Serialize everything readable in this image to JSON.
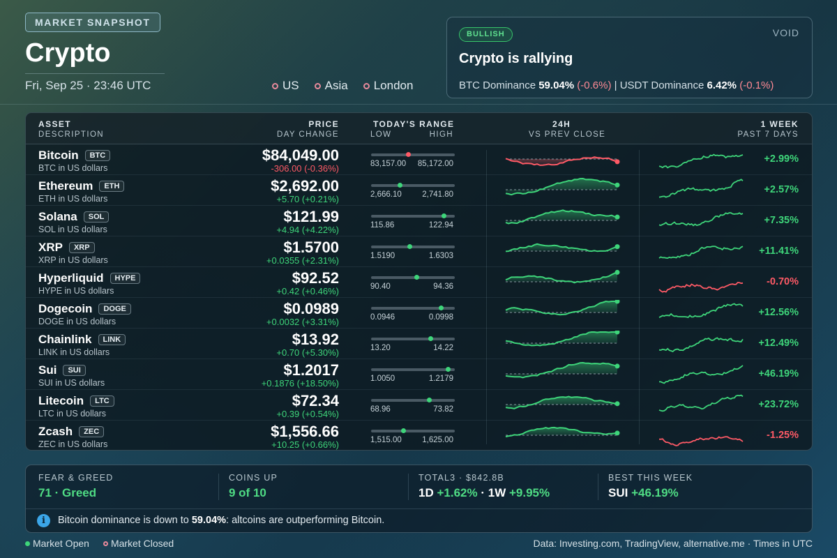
{
  "header": {
    "badge": "MARKET SNAPSHOT",
    "title": "Crypto",
    "datetime": "Fri, Sep 25 · 23:46 UTC",
    "sessions": [
      "US",
      "Asia",
      "London"
    ]
  },
  "sentiment": {
    "badge": "BULLISH",
    "brand": "VOID",
    "headline": "Crypto is rallying",
    "btc_label": "BTC Dominance",
    "btc_value": "59.04%",
    "btc_change": "(-0.6%)",
    "separator": "|",
    "usdt_label": "USDT Dominance",
    "usdt_value": "6.42%",
    "usdt_change": "(-0.1%)"
  },
  "table": {
    "headers": {
      "asset": "ASSET",
      "description": "DESCRIPTION",
      "price": "PRICE",
      "day_change": "DAY CHANGE",
      "range": "TODAY'S RANGE",
      "low": "LOW",
      "high": "HIGH",
      "h24": "24H",
      "vs_prev": "VS PREV CLOSE",
      "week": "1 WEEK",
      "past7": "PAST 7 DAYS"
    },
    "colors": {
      "up": "#3ed57a",
      "down": "#ff5a66"
    },
    "rows": [
      {
        "name": "Bitcoin",
        "ticker": "BTC",
        "desc": "BTC in US dollars",
        "price": "$84,049.00",
        "change": "-306.00 (-0.36%)",
        "dir": "down",
        "low": "83,157.00",
        "high": "85,172.00",
        "range_pos": 0.44,
        "week": "+2.99%",
        "week_dir": "up"
      },
      {
        "name": "Ethereum",
        "ticker": "ETH",
        "desc": "ETH in US dollars",
        "price": "$2,692.00",
        "change": "+5.70 (+0.21%)",
        "dir": "up",
        "low": "2,666.10",
        "high": "2,741.80",
        "range_pos": 0.34,
        "week": "+2.57%",
        "week_dir": "up"
      },
      {
        "name": "Solana",
        "ticker": "SOL",
        "desc": "SOL in US dollars",
        "price": "$121.99",
        "change": "+4.94 (+4.22%)",
        "dir": "up",
        "low": "115.86",
        "high": "122.94",
        "range_pos": 0.87,
        "week": "+7.35%",
        "week_dir": "up"
      },
      {
        "name": "XRP",
        "ticker": "XRP",
        "desc": "XRP in US dollars",
        "price": "$1.5700",
        "change": "+0.0355 (+2.31%)",
        "dir": "up",
        "low": "1.5190",
        "high": "1.6303",
        "range_pos": 0.46,
        "week": "+11.41%",
        "week_dir": "up"
      },
      {
        "name": "Hyperliquid",
        "ticker": "HYPE",
        "desc": "HYPE in US dollars",
        "price": "$92.52",
        "change": "+0.42 (+0.46%)",
        "dir": "up",
        "low": "90.40",
        "high": "94.36",
        "range_pos": 0.54,
        "week": "-0.70%",
        "week_dir": "down"
      },
      {
        "name": "Dogecoin",
        "ticker": "DOGE",
        "desc": "DOGE in US dollars",
        "price": "$0.0989",
        "change": "+0.0032 (+3.31%)",
        "dir": "up",
        "low": "0.0946",
        "high": "0.0998",
        "range_pos": 0.83,
        "week": "+12.56%",
        "week_dir": "up"
      },
      {
        "name": "Chainlink",
        "ticker": "LINK",
        "desc": "LINK in US dollars",
        "price": "$13.92",
        "change": "+0.70 (+5.30%)",
        "dir": "up",
        "low": "13.20",
        "high": "14.22",
        "range_pos": 0.71,
        "week": "+12.49%",
        "week_dir": "up"
      },
      {
        "name": "Sui",
        "ticker": "SUI",
        "desc": "SUI in US dollars",
        "price": "$1.2017",
        "change": "+0.1876 (+18.50%)",
        "dir": "up",
        "low": "1.0050",
        "high": "1.2179",
        "range_pos": 0.92,
        "week": "+46.19%",
        "week_dir": "up"
      },
      {
        "name": "Litecoin",
        "ticker": "LTC",
        "desc": "LTC in US dollars",
        "price": "$72.34",
        "change": "+0.39 (+0.54%)",
        "dir": "up",
        "low": "68.96",
        "high": "73.82",
        "range_pos": 0.69,
        "week": "+23.72%",
        "week_dir": "up"
      },
      {
        "name": "Zcash",
        "ticker": "ZEC",
        "desc": "ZEC in US dollars",
        "price": "$1,556.66",
        "change": "+10.25 (+0.66%)",
        "dir": "up",
        "low": "1,515.00",
        "high": "1,625.00",
        "range_pos": 0.38,
        "week": "-1.25%",
        "week_dir": "down"
      }
    ]
  },
  "stats": {
    "fear_greed_label": "FEAR & GREED",
    "fear_greed_value": "71 · Greed",
    "coins_up_label": "COINS UP",
    "coins_up_value": "9 of 10",
    "total3_label": "TOTAL3 · $842.8B",
    "total3_1d_label": "1D",
    "total3_1d": "+1.62%",
    "total3_sep": "·",
    "total3_1w_label": "1W",
    "total3_1w": "+9.95%",
    "best_label": "BEST THIS WEEK",
    "best_coin": "SUI",
    "best_value": "+46.19%",
    "info_icon": "i",
    "info_prefix": "Bitcoin dominance is down to",
    "info_value": "59.04%",
    "info_suffix": ": altcoins are outperforming Bitcoin."
  },
  "footer": {
    "open": "Market Open",
    "closed": "Market Closed",
    "source": "Data: Investing.com, TradingView, alternative.me  ·  Times in UTC"
  }
}
